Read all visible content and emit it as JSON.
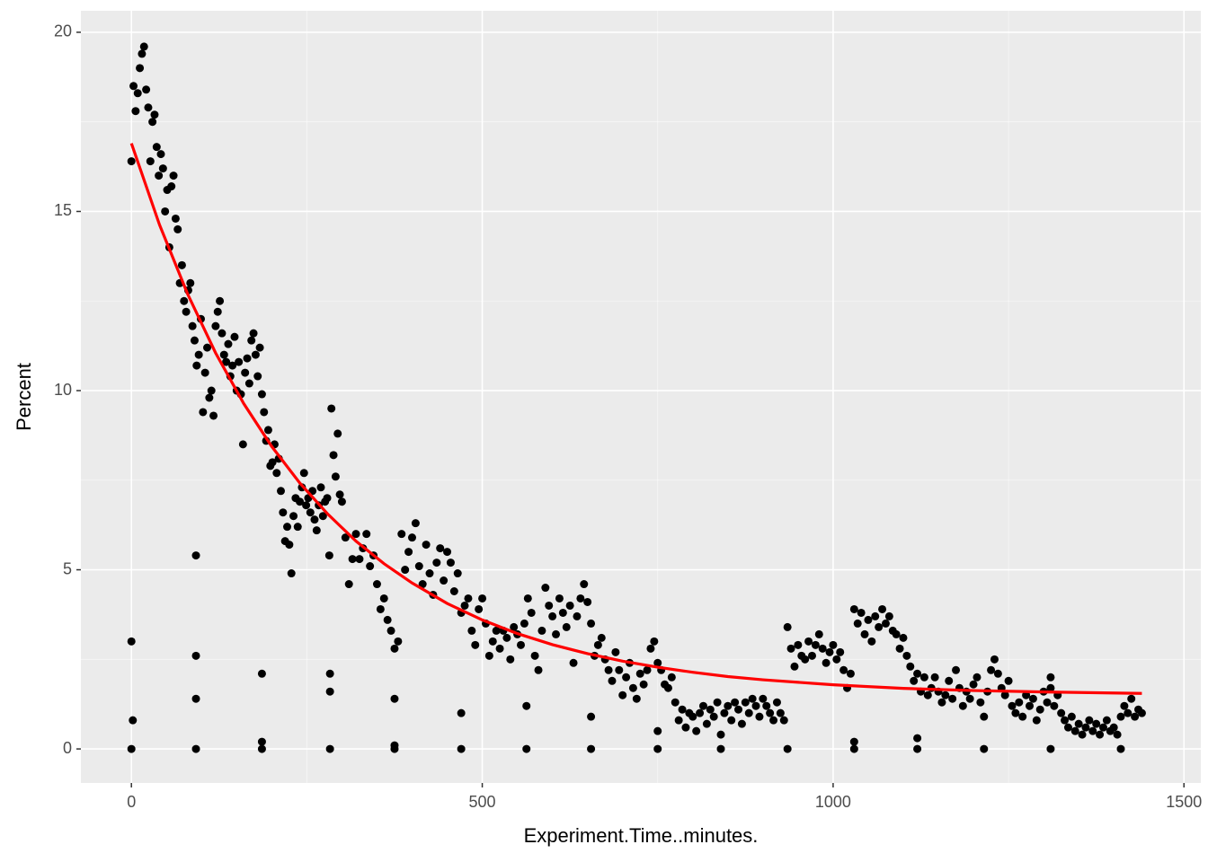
{
  "chart_data": {
    "type": "scatter",
    "x_label": "Experiment.Time..minutes.",
    "y_label": "Percent",
    "xlim": [
      -72,
      1524
    ],
    "ylim": [
      -0.95,
      20.6
    ],
    "xticks": [
      0,
      500,
      1000,
      1500
    ],
    "yticks": [
      0,
      5,
      10,
      15,
      20
    ],
    "x_minor_ticks": [
      250,
      750,
      1250
    ],
    "y_minor_ticks": [
      2.5,
      7.5,
      12.5,
      17.5
    ],
    "grid": true,
    "background": "#ebebeb",
    "points": {
      "color": "#000000",
      "x": [
        0,
        3,
        6,
        9,
        12,
        15,
        18,
        21,
        24,
        27,
        30,
        33,
        36,
        39,
        42,
        45,
        48,
        51,
        54,
        57,
        60,
        63,
        66,
        69,
        72,
        75,
        78,
        81,
        84,
        87,
        90,
        93,
        96,
        99,
        102,
        105,
        108,
        111,
        114,
        117,
        120,
        123,
        126,
        129,
        132,
        135,
        138,
        141,
        144,
        147,
        150,
        153,
        156,
        159,
        162,
        165,
        168,
        171,
        174,
        177,
        180,
        183,
        186,
        189,
        192,
        195,
        198,
        201,
        204,
        207,
        210,
        213,
        216,
        219,
        222,
        225,
        228,
        231,
        234,
        237,
        240,
        243,
        246,
        249,
        252,
        255,
        258,
        261,
        264,
        267,
        270,
        273,
        276,
        279,
        282,
        285,
        288,
        291,
        294,
        297,
        300,
        305,
        310,
        315,
        320,
        325,
        330,
        335,
        340,
        345,
        350,
        355,
        360,
        365,
        370,
        375,
        380,
        385,
        390,
        395,
        400,
        405,
        410,
        415,
        420,
        425,
        430,
        435,
        440,
        445,
        450,
        455,
        460,
        465,
        470,
        475,
        480,
        485,
        490,
        495,
        500,
        505,
        510,
        515,
        520,
        525,
        530,
        535,
        540,
        545,
        550,
        555,
        560,
        565,
        570,
        575,
        580,
        585,
        590,
        595,
        600,
        605,
        610,
        615,
        620,
        625,
        630,
        635,
        640,
        645,
        650,
        655,
        660,
        665,
        670,
        675,
        680,
        685,
        690,
        695,
        700,
        705,
        710,
        715,
        720,
        725,
        730,
        735,
        740,
        745,
        750,
        755,
        760,
        765,
        770,
        775,
        780,
        785,
        790,
        795,
        800,
        805,
        810,
        815,
        820,
        825,
        830,
        835,
        840,
        845,
        850,
        855,
        860,
        865,
        870,
        875,
        880,
        885,
        890,
        895,
        900,
        905,
        910,
        915,
        920,
        925,
        930,
        935,
        940,
        945,
        950,
        955,
        960,
        965,
        970,
        975,
        980,
        985,
        990,
        995,
        1000,
        1005,
        1010,
        1015,
        1020,
        1025,
        1030,
        1035,
        1040,
        1045,
        1050,
        1055,
        1060,
        1065,
        1070,
        1075,
        1080,
        1085,
        1090,
        1095,
        1100,
        1105,
        1110,
        1115,
        1120,
        1125,
        1130,
        1135,
        1140,
        1145,
        1150,
        1155,
        1160,
        1165,
        1170,
        1175,
        1180,
        1185,
        1190,
        1195,
        1200,
        1205,
        1210,
        1215,
        1220,
        1225,
        1230,
        1235,
        1240,
        1245,
        1250,
        1255,
        1260,
        1265,
        1270,
        1275,
        1280,
        1285,
        1290,
        1295,
        1300,
        1305,
        1310,
        1315,
        1320,
        1325,
        1330,
        1335,
        1340,
        1345,
        1350,
        1355,
        1360,
        1365,
        1370,
        1375,
        1380,
        1385,
        1390,
        1395,
        1400,
        1405,
        1410,
        1415,
        1420,
        1425,
        1430,
        1435,
        1440,
        0,
        0,
        2,
        92,
        92,
        92,
        92,
        186,
        186,
        186,
        283,
        283,
        283,
        375,
        375,
        375,
        470,
        470,
        563,
        563,
        655,
        655,
        750,
        750,
        840,
        935,
        1030,
        1030,
        1120,
        1120,
        1215,
        1310,
        1310,
        1410
      ],
      "values": [
        16.4,
        18.5,
        17.8,
        18.3,
        19.0,
        19.4,
        19.6,
        18.4,
        17.9,
        16.4,
        17.5,
        17.7,
        16.8,
        16.0,
        16.6,
        16.2,
        15.0,
        15.6,
        14.0,
        15.7,
        16.0,
        14.8,
        14.5,
        13.0,
        13.5,
        12.5,
        12.2,
        12.8,
        13.0,
        11.8,
        11.4,
        10.7,
        11.0,
        12.0,
        9.4,
        10.5,
        11.2,
        9.8,
        10.0,
        9.3,
        11.8,
        12.2,
        12.5,
        11.6,
        11.0,
        10.8,
        11.3,
        10.4,
        10.7,
        11.5,
        10.0,
        10.8,
        9.9,
        8.5,
        10.5,
        10.9,
        10.2,
        11.4,
        11.6,
        11.0,
        10.4,
        11.2,
        9.9,
        9.4,
        8.6,
        8.9,
        7.9,
        8.0,
        8.5,
        7.7,
        8.1,
        7.2,
        6.6,
        5.8,
        6.2,
        5.7,
        4.9,
        6.5,
        7.0,
        6.2,
        6.9,
        7.3,
        7.7,
        6.8,
        7.0,
        6.6,
        7.2,
        6.4,
        6.1,
        6.8,
        7.3,
        6.5,
        6.9,
        7.0,
        5.4,
        9.5,
        8.2,
        7.6,
        8.8,
        7.1,
        6.9,
        5.9,
        4.6,
        5.3,
        6.0,
        5.3,
        5.6,
        6.0,
        5.1,
        5.4,
        4.6,
        3.9,
        4.2,
        3.6,
        3.3,
        2.8,
        3.0,
        6.0,
        5.0,
        5.5,
        5.9,
        6.3,
        5.1,
        4.6,
        5.7,
        4.9,
        4.3,
        5.2,
        5.6,
        4.7,
        5.5,
        5.2,
        4.4,
        4.9,
        3.8,
        4.0,
        4.2,
        3.3,
        2.9,
        3.9,
        4.2,
        3.5,
        2.6,
        3.0,
        3.3,
        2.8,
        3.3,
        3.1,
        2.5,
        3.4,
        3.2,
        2.9,
        3.5,
        4.2,
        3.8,
        2.6,
        2.2,
        3.3,
        4.5,
        4.0,
        3.7,
        3.2,
        4.2,
        3.8,
        3.4,
        4.0,
        2.4,
        3.7,
        4.2,
        4.6,
        4.1,
        3.5,
        2.6,
        2.9,
        3.1,
        2.5,
        2.2,
        1.9,
        2.7,
        2.2,
        1.5,
        2.0,
        2.4,
        1.7,
        1.4,
        2.1,
        1.8,
        2.2,
        2.8,
        3.0,
        2.4,
        2.2,
        1.8,
        1.7,
        2.0,
        1.3,
        0.8,
        1.1,
        0.6,
        1.0,
        0.9,
        0.5,
        1.0,
        1.2,
        0.7,
        1.1,
        0.9,
        1.3,
        0.4,
        1.0,
        1.2,
        0.8,
        1.3,
        1.1,
        0.7,
        1.3,
        1.0,
        1.4,
        1.2,
        0.9,
        1.4,
        1.2,
        1.0,
        0.8,
        1.3,
        1.0,
        0.8,
        3.4,
        2.8,
        2.3,
        2.9,
        2.6,
        2.5,
        3.0,
        2.6,
        2.9,
        3.2,
        2.8,
        2.4,
        2.7,
        2.9,
        2.5,
        2.7,
        2.2,
        1.7,
        2.1,
        3.9,
        3.5,
        3.8,
        3.2,
        3.6,
        3.0,
        3.7,
        3.4,
        3.9,
        3.5,
        3.7,
        3.3,
        3.2,
        2.8,
        3.1,
        2.6,
        2.3,
        1.9,
        2.1,
        1.6,
        2.0,
        1.5,
        1.7,
        2.0,
        1.6,
        1.3,
        1.5,
        1.9,
        1.4,
        2.2,
        1.7,
        1.2,
        1.6,
        1.4,
        1.8,
        2.0,
        1.3,
        0.9,
        1.6,
        2.2,
        2.5,
        2.1,
        1.7,
        1.5,
        1.9,
        1.2,
        1.0,
        1.3,
        0.9,
        1.5,
        1.2,
        1.4,
        0.8,
        1.1,
        1.6,
        1.3,
        1.7,
        1.2,
        1.5,
        1.0,
        0.8,
        0.6,
        0.9,
        0.5,
        0.7,
        0.4,
        0.6,
        0.8,
        0.5,
        0.7,
        0.4,
        0.6,
        0.8,
        0.5,
        0.6,
        0.4,
        0.9,
        1.2,
        1.0,
        1.4,
        0.9,
        1.1,
        1.0,
        0,
        3.0,
        0.8,
        5.4,
        2.6,
        1.4,
        0,
        2.1,
        0.2,
        0,
        2.1,
        1.6,
        0,
        1.4,
        0.1,
        0,
        1.0,
        0,
        0,
        1.2,
        0,
        0.9,
        0,
        0.5,
        0,
        0,
        0,
        0.2,
        0.3,
        0,
        0,
        0,
        2.0,
        0
      ]
    },
    "fit": {
      "type": "line",
      "color": "#ff0000",
      "x": [
        0,
        40,
        80,
        120,
        160,
        200,
        240,
        280,
        320,
        360,
        400,
        450,
        500,
        550,
        600,
        650,
        700,
        750,
        800,
        850,
        900,
        1000,
        1100,
        1200,
        1300,
        1440
      ],
      "values": [
        16.9,
        14.63,
        12.7,
        11.05,
        9.64,
        8.44,
        7.42,
        6.55,
        5.8,
        5.17,
        4.63,
        4.06,
        3.6,
        3.22,
        2.91,
        2.66,
        2.45,
        2.28,
        2.14,
        2.02,
        1.93,
        1.79,
        1.69,
        1.63,
        1.59,
        1.55
      ]
    }
  }
}
